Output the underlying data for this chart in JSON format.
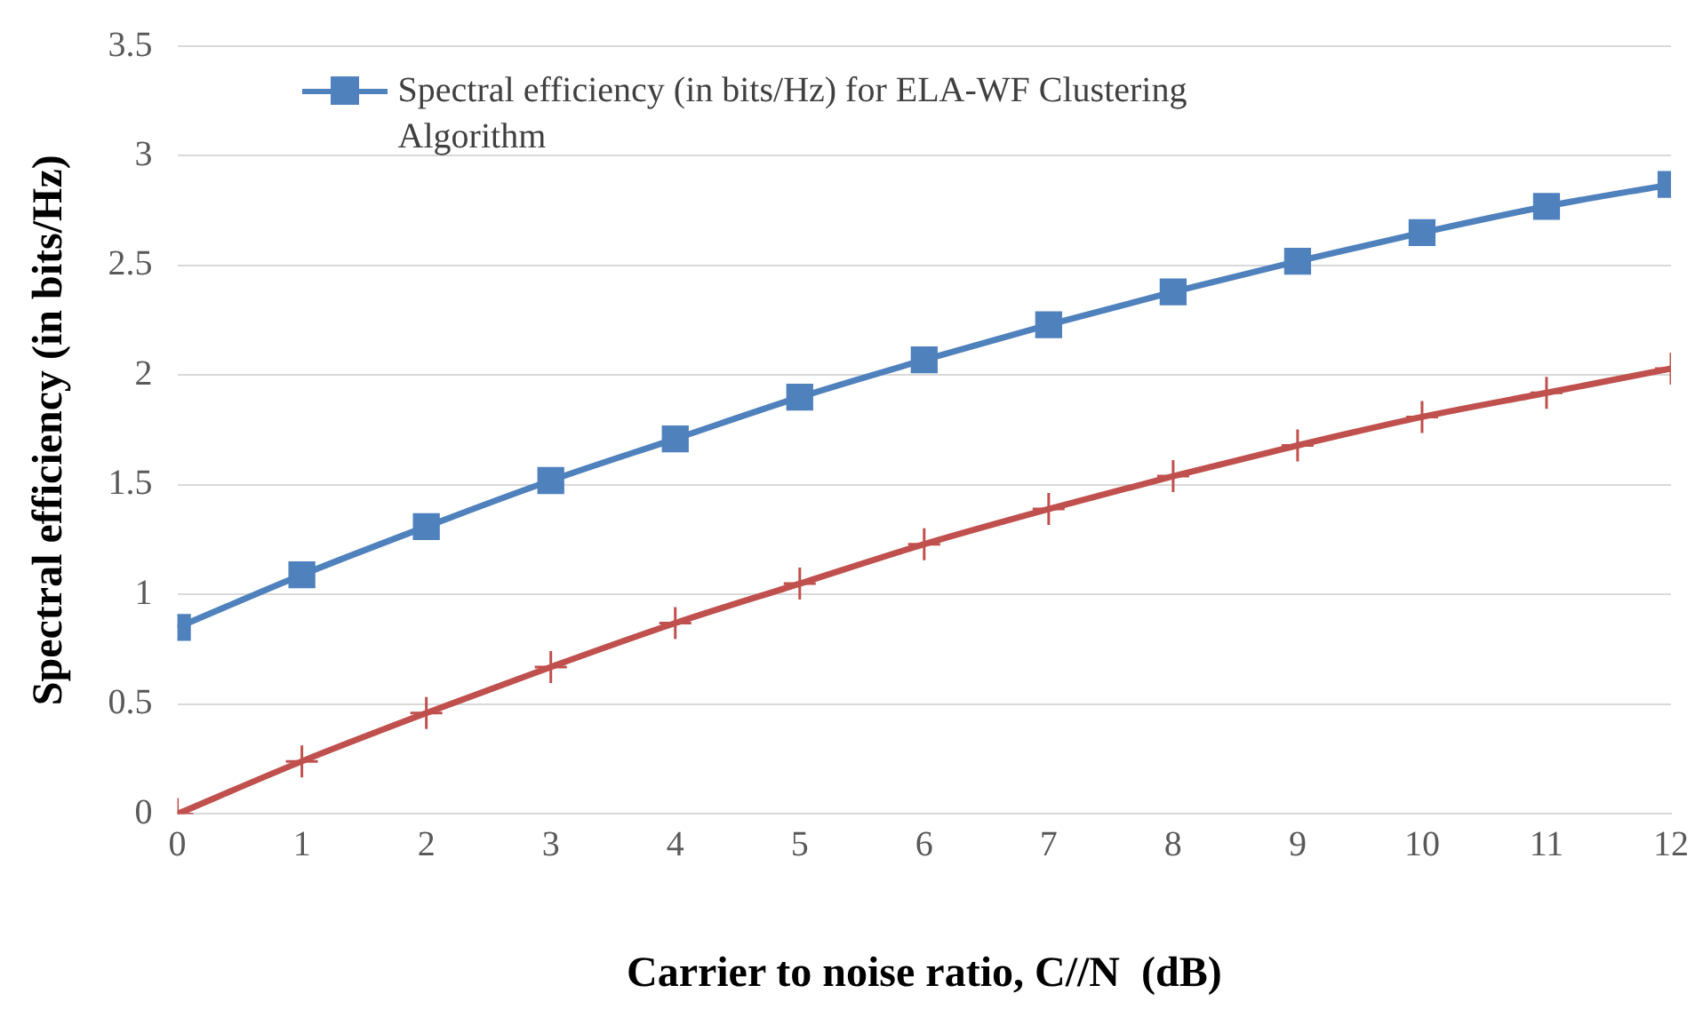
{
  "chart_data": {
    "type": "line",
    "xlabel": "Carrier to noise ratio, C//N  (dB)",
    "ylabel": "Spectral efficiency (in bits/Hz)",
    "x": [
      0,
      1,
      2,
      3,
      4,
      5,
      6,
      7,
      8,
      9,
      10,
      11,
      12
    ],
    "series": [
      {
        "name": "Spectral efficiency (in bits/Hz)  for ELA-WF Clustering Algorithm",
        "color": "#4f81bd",
        "marker": "square",
        "values": [
          0.85,
          1.09,
          1.31,
          1.52,
          1.71,
          1.9,
          2.07,
          2.23,
          2.38,
          2.52,
          2.65,
          2.77,
          2.87
        ]
      },
      {
        "color": "#c0504d",
        "marker": "cross",
        "values": [
          0,
          0.24,
          0.46,
          0.67,
          0.87,
          1.05,
          1.23,
          1.39,
          1.54,
          1.68,
          1.81,
          1.92,
          2.03
        ]
      }
    ],
    "xlim": [
      0,
      12
    ],
    "xticks": [
      0,
      1,
      2,
      3,
      4,
      5,
      6,
      7,
      8,
      9,
      10,
      11,
      12
    ],
    "ylim": [
      0,
      3.5
    ],
    "yticks": [
      0,
      0.5,
      1,
      1.5,
      2,
      2.5,
      3,
      3.5
    ],
    "grid": "y",
    "legend": "top left",
    "line_style": "solid"
  }
}
